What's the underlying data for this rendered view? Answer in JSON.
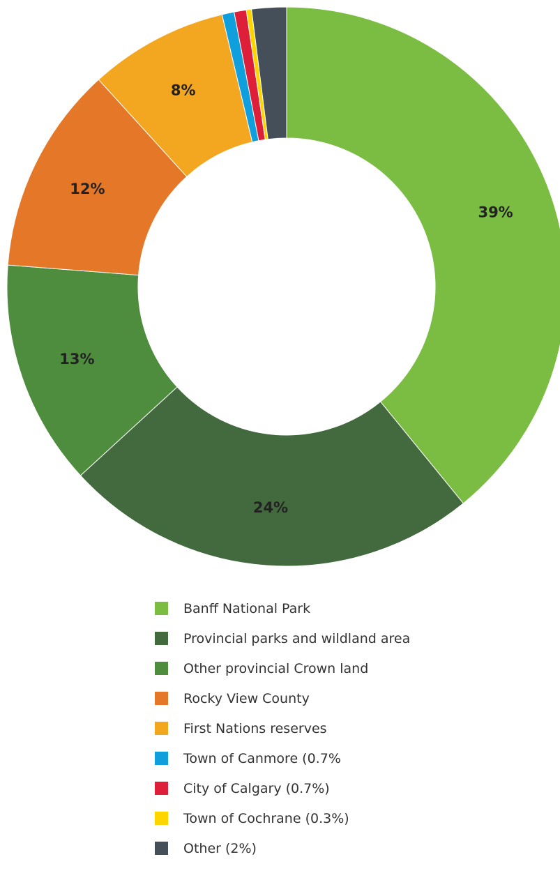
{
  "chart_data": {
    "type": "pie",
    "donut": true,
    "title": "",
    "legend_position": "bottom",
    "slices": [
      {
        "name": "Banff National Park",
        "value": 39,
        "label": "39%",
        "color": "#7bbd43"
      },
      {
        "name": "Provincial parks and wildland area",
        "value": 24,
        "label": "24%",
        "color": "#436a3e"
      },
      {
        "name": "Other provincial Crown land",
        "value": 13,
        "label": "13%",
        "color": "#4f8d3e"
      },
      {
        "name": "Rocky View County",
        "value": 12,
        "label": "12%",
        "color": "#e57828"
      },
      {
        "name": "First Nations reserves",
        "value": 8,
        "label": "8%",
        "color": "#f3a720"
      },
      {
        "name": "Town of Canmore (0.7%",
        "value": 0.7,
        "label": "",
        "color": "#109fdd"
      },
      {
        "name": "City of Calgary (0.7%)",
        "value": 0.7,
        "label": "",
        "color": "#dd1f3a"
      },
      {
        "name": "Town of Cochrane (0.3%)",
        "value": 0.3,
        "label": "",
        "color": "#ffd500"
      },
      {
        "name": "Other (2%)",
        "value": 2,
        "label": "",
        "color": "#444f59"
      }
    ]
  }
}
